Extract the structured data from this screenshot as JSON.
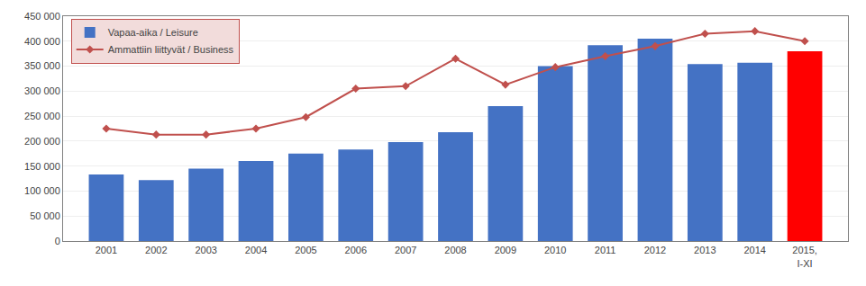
{
  "chart_data": {
    "type": "bar",
    "categories": [
      "2001",
      "2002",
      "2003",
      "2004",
      "2005",
      "2006",
      "2007",
      "2008",
      "2009",
      "2010",
      "2011",
      "2012",
      "2013",
      "2014",
      "2015,\nI-XI"
    ],
    "series": [
      {
        "name": "Vapaa-aika / Leisure",
        "type": "bar",
        "colors": [
          "#4472C4",
          "#4472C4",
          "#4472C4",
          "#4472C4",
          "#4472C4",
          "#4472C4",
          "#4472C4",
          "#4472C4",
          "#4472C4",
          "#4472C4",
          "#4472C4",
          "#4472C4",
          "#4472C4",
          "#4472C4",
          "#FF0000"
        ],
        "values": [
          133000,
          122000,
          145000,
          160000,
          175000,
          183000,
          198000,
          218000,
          270000,
          350000,
          392000,
          405000,
          354000,
          357000,
          380000
        ]
      },
      {
        "name": "Ammattiin liittyvät / Business",
        "type": "line",
        "color": "#C0504D",
        "marker": "diamond",
        "values": [
          225000,
          213000,
          213000,
          225000,
          248000,
          305000,
          310000,
          365000,
          313000,
          348000,
          370000,
          390000,
          415000,
          420000,
          400000
        ]
      }
    ],
    "ylim": [
      0,
      450000
    ],
    "yticks": [
      0,
      {
        "value": 50000,
        "label": "50 000"
      },
      {
        "value": 100000,
        "label": "100 000"
      },
      {
        "value": 150000,
        "label": "150 000"
      },
      {
        "value": 200000,
        "label": "200 000"
      },
      {
        "value": 250000,
        "label": "250 000"
      },
      {
        "value": 300000,
        "label": "300 000"
      },
      {
        "value": 350000,
        "label": "350 000"
      },
      {
        "value": 400000,
        "label": "400 000"
      },
      {
        "value": 450000,
        "label": "450 000"
      }
    ],
    "grid": true,
    "legend": "upper left"
  }
}
